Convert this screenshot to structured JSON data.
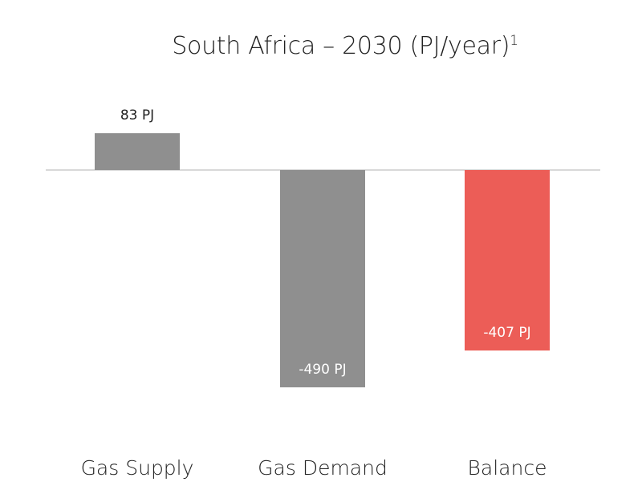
{
  "chart_data": {
    "type": "bar",
    "title": "South Africa – 2030 (PJ/year)",
    "title_superscript": "1",
    "categories": [
      "Gas Supply",
      "Gas Demand",
      "Balance"
    ],
    "values": [
      83,
      -490,
      -407
    ],
    "data_labels": [
      "83 PJ",
      "-490 PJ",
      "-407 PJ"
    ],
    "unit": "PJ",
    "ylim": [
      -560,
      120
    ],
    "grid": false,
    "legend": "none",
    "colors": {
      "default_bar": "#8f8f8f",
      "highlight_bar": "#ec5d57",
      "baseline": "#d8d8d8",
      "label_dark": "#222222",
      "label_light": "#ffffff"
    },
    "highlight_index": 2
  }
}
